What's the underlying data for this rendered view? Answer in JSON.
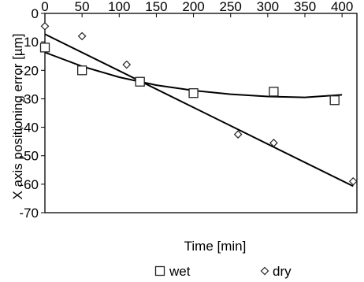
{
  "chart_data": {
    "type": "scatter",
    "title": "",
    "xlabel": "Time [min]",
    "ylabel": "X axis positioning error  [µm]",
    "xlim": [
      0,
      420
    ],
    "ylim": [
      -70,
      0
    ],
    "xticks": [
      "0",
      "50",
      "100",
      "150",
      "200",
      "250",
      "300",
      "350",
      "400"
    ],
    "yticks": [
      "0",
      "-10",
      "-20",
      "-30",
      "-40",
      "-50",
      "-60",
      "-70"
    ],
    "grid": false,
    "legend_position": "bottom",
    "series": [
      {
        "name": "wet",
        "marker": "square",
        "points": [
          [
            0,
            -12
          ],
          [
            50,
            -20
          ],
          [
            128,
            -24
          ],
          [
            200,
            -28
          ],
          [
            308,
            -27.5
          ],
          [
            390,
            -30.5
          ]
        ],
        "trend": [
          [
            0,
            -13.7
          ],
          [
            50,
            -18.6
          ],
          [
            100,
            -22.4
          ],
          [
            150,
            -25.2
          ],
          [
            200,
            -27.1
          ],
          [
            250,
            -28.4
          ],
          [
            300,
            -29.2
          ],
          [
            350,
            -29.5
          ],
          [
            400,
            -28.6
          ]
        ]
      },
      {
        "name": "dry",
        "marker": "diamond",
        "points": [
          [
            0,
            -4.5
          ],
          [
            50,
            -8
          ],
          [
            110,
            -18
          ],
          [
            260,
            -42.5
          ],
          [
            308,
            -45.5
          ],
          [
            415,
            -59
          ]
        ],
        "trend": [
          [
            0,
            -7.3
          ],
          [
            415,
            -60.7
          ]
        ]
      }
    ]
  }
}
